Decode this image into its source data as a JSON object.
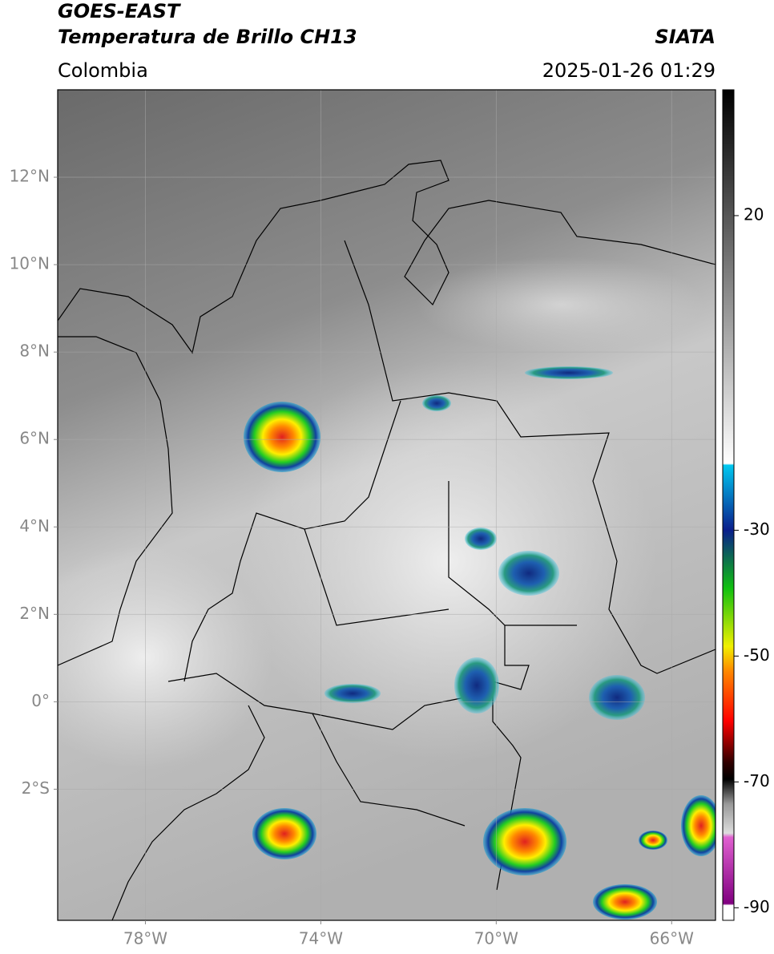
{
  "map": {
    "title": "GOES-EAST",
    "subtitle": "Temperatura de Brillo CH13",
    "region": "Colombia",
    "source": "SIATA",
    "datetime": "2025-01-26 01:29",
    "xlim": [
      -80,
      -65
    ],
    "ylim": [
      -5,
      14
    ],
    "xticks": [
      {
        "value": -78,
        "label": "78°W"
      },
      {
        "value": -74,
        "label": "74°W"
      },
      {
        "value": -70,
        "label": "70°W"
      },
      {
        "value": -66,
        "label": "66°W"
      }
    ],
    "yticks": [
      {
        "value": 12,
        "label": "12°N"
      },
      {
        "value": 10,
        "label": "10°N"
      },
      {
        "value": 8,
        "label": "8°N"
      },
      {
        "value": 6,
        "label": "6°N"
      },
      {
        "value": 4,
        "label": "4°N"
      },
      {
        "value": 2,
        "label": "2°N"
      },
      {
        "value": 0,
        "label": "0°"
      },
      {
        "value": -2,
        "label": "2°S"
      }
    ],
    "colorbar": {
      "lim": [
        -92,
        40
      ],
      "ticks": [
        20,
        -30,
        -50,
        -70,
        -90
      ]
    }
  }
}
